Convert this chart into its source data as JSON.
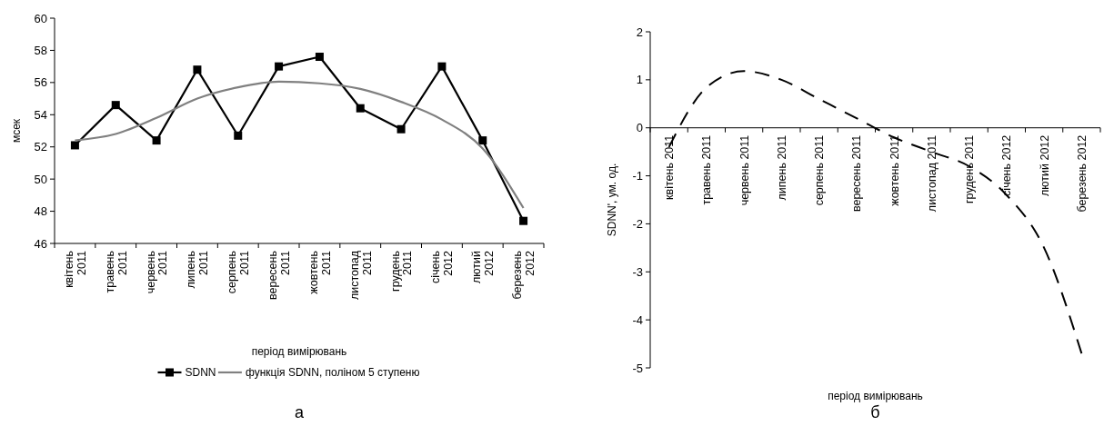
{
  "chart_data": [
    {
      "type": "line",
      "xlabel": "період вимірювань",
      "ylabel": "мсек",
      "categories": [
        "квітень 2011",
        "травень 2011",
        "червень 2011",
        "липень 2011",
        "серпень 2011",
        "вересень 2011",
        "жовтень 2011",
        "листопад 2011",
        "грудень 2011",
        "січень 2012",
        "лютий 2012",
        "березень 2012"
      ],
      "series": [
        {
          "name": "SDNN",
          "color": "#000000",
          "marker": "square",
          "line_style": "solid",
          "values": [
            52.1,
            54.6,
            52.4,
            56.8,
            52.7,
            57.0,
            57.6,
            54.4,
            53.1,
            57.0,
            52.4,
            47.4
          ]
        },
        {
          "name": "функція SDNN, поліном 5 ступеню",
          "color": "#808080",
          "marker": "none",
          "line_style": "solid",
          "values": [
            52.4,
            52.8,
            53.8,
            55.0,
            55.7,
            56.05,
            55.95,
            55.6,
            54.8,
            53.7,
            51.9,
            48.2
          ]
        }
      ],
      "ylim": [
        46,
        60
      ],
      "yticks": [
        46,
        48,
        50,
        52,
        54,
        56,
        58,
        60
      ],
      "grid": false,
      "legend": "bottom",
      "annotations": [
        "а"
      ]
    },
    {
      "type": "line",
      "xlabel": "період вимірювань",
      "ylabel": "SDNN', ум. од.",
      "categories": [
        "квітень 2011",
        "травень 2011",
        "червень 2011",
        "липень 2011",
        "серпень 2011",
        "вересень 2011",
        "жовтень 2011",
        "листопад 2011",
        "грудень 2011",
        "січень 2012",
        "лютий 2012",
        "березень 2012"
      ],
      "series": [
        {
          "color": "#000000",
          "marker": "none",
          "line_style": "dashed",
          "values": [
            -0.4,
            0.84,
            1.18,
            1.0,
            0.6,
            0.2,
            -0.2,
            -0.5,
            -0.8,
            -1.4,
            -2.5,
            -4.7
          ]
        }
      ],
      "ylim": [
        -5,
        2
      ],
      "yticks": [
        -5,
        -4,
        -3,
        -2,
        -1,
        0,
        1,
        2
      ],
      "grid": false,
      "legend": false,
      "annotations": [
        "б"
      ]
    }
  ]
}
